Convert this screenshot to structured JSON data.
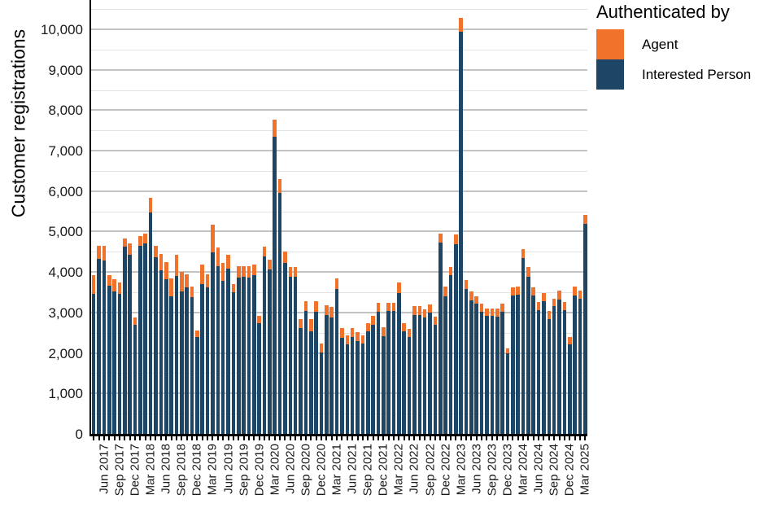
{
  "y_axis": {
    "title": "Customer registrations",
    "tick_values": [
      0,
      1000,
      2000,
      3000,
      4000,
      5000,
      6000,
      7000,
      8000,
      9000,
      10000
    ],
    "tick_labels": [
      "0",
      "1,000",
      "2,000",
      "3,000",
      "4,000",
      "5,000",
      "6,000",
      "7,000",
      "8,000",
      "9,000",
      "10,000"
    ]
  },
  "legend": {
    "title": "Authenticated by",
    "items": [
      {
        "label": "Agent",
        "color": "#F1732B"
      },
      {
        "label": "Interested Person",
        "color": "#1C4566"
      }
    ]
  },
  "chart_data": {
    "type": "bar",
    "stacked": true,
    "title": "",
    "xlabel": "",
    "ylabel": "Customer registrations",
    "ylim": [
      0,
      10724
    ],
    "grid": "horizontal, major every 1000 (gray), minor every 500 (light gray)",
    "legend_position": "top-right",
    "x": [
      "Apr 2017",
      "May 2017",
      "Jun 2017",
      "Jul 2017",
      "Aug 2017",
      "Sep 2017",
      "Oct 2017",
      "Nov 2017",
      "Dec 2017",
      "Jan 2018",
      "Feb 2018",
      "Mar 2018",
      "Apr 2018",
      "May 2018",
      "Jun 2018",
      "Jul 2018",
      "Aug 2018",
      "Sep 2018",
      "Oct 2018",
      "Nov 2018",
      "Dec 2018",
      "Jan 2019",
      "Feb 2019",
      "Mar 2019",
      "Apr 2019",
      "May 2019",
      "Jun 2019",
      "Jul 2019",
      "Aug 2019",
      "Sep 2019",
      "Oct 2019",
      "Nov 2019",
      "Dec 2019",
      "Jan 2020",
      "Feb 2020",
      "Mar 2020",
      "Apr 2020",
      "May 2020",
      "Jun 2020",
      "Jul 2020",
      "Aug 2020",
      "Sep 2020",
      "Oct 2020",
      "Nov 2020",
      "Dec 2020",
      "Jan 2021",
      "Feb 2021",
      "Mar 2021",
      "Apr 2021",
      "May 2021",
      "Jun 2021",
      "Jul 2021",
      "Aug 2021",
      "Sep 2021",
      "Oct 2021",
      "Nov 2021",
      "Dec 2021",
      "Jan 2022",
      "Feb 2022",
      "Mar 2022",
      "Apr 2022",
      "May 2022",
      "Jun 2022",
      "Jul 2022",
      "Aug 2022",
      "Sep 2022",
      "Oct 2022",
      "Nov 2022",
      "Dec 2022",
      "Jan 2023",
      "Feb 2023",
      "Mar 2023",
      "Apr 2023",
      "May 2023",
      "Jun 2023",
      "Jul 2023",
      "Aug 2023",
      "Sep 2023",
      "Oct 2023",
      "Nov 2023",
      "Dec 2023",
      "Jan 2024",
      "Feb 2024",
      "Mar 2024",
      "Apr 2024",
      "May 2024",
      "Jun 2024",
      "Jul 2024",
      "Aug 2024",
      "Sep 2024",
      "Oct 2024",
      "Nov 2024",
      "Dec 2024",
      "Jan 2025",
      "Feb 2025",
      "Mar 2025"
    ],
    "x_tick_labels": [
      "Jun 2017",
      "Sep 2017",
      "Dec 2017",
      "Mar 2018",
      "Jun 2018",
      "Sep 2018",
      "Dec 2018",
      "Mar 2019",
      "Jun 2019",
      "Sep 2019",
      "Dec 2019",
      "Mar 2020",
      "Jun 2020",
      "Sep 2020",
      "Dec 2020",
      "Mar 2021",
      "Jun 2021",
      "Sep 2021",
      "Dec 2021",
      "Mar 2022",
      "Jun 2022",
      "Sep 2022",
      "Dec 2022",
      "Mar 2023",
      "Jun 2023",
      "Sep 2023",
      "Dec 2023",
      "Mar 2024",
      "Jun 2024",
      "Sep 2024",
      "Dec 2024",
      "Mar 2025"
    ],
    "series": [
      {
        "name": "Interested Person",
        "color": "#1C4566",
        "values": [
          3460,
          4330,
          4280,
          3660,
          3520,
          3470,
          4620,
          4430,
          2690,
          4640,
          4700,
          5480,
          4360,
          4050,
          3820,
          3410,
          3900,
          3520,
          3620,
          3380,
          2390,
          3700,
          3620,
          4480,
          4140,
          3780,
          4080,
          3500,
          3870,
          3880,
          3870,
          3920,
          2730,
          4390,
          4060,
          7350,
          5950,
          4220,
          3880,
          3880,
          2610,
          3040,
          2540,
          3010,
          2010,
          2940,
          2880,
          3580,
          2370,
          2210,
          2400,
          2300,
          2230,
          2540,
          2700,
          3020,
          2420,
          3030,
          3030,
          3480,
          2540,
          2400,
          2930,
          2940,
          2880,
          3000,
          2700,
          4730,
          3410,
          3920,
          4690,
          9930,
          3580,
          3310,
          3210,
          3020,
          2910,
          2910,
          2900,
          3010,
          1990,
          3430,
          3440,
          4350,
          3880,
          3430,
          3060,
          3280,
          2830,
          3150,
          3330,
          3060,
          2210,
          3430,
          3350,
          5190
        ]
      },
      {
        "name": "Agent",
        "color": "#F1732B",
        "values": [
          460,
          310,
          370,
          270,
          300,
          270,
          200,
          270,
          180,
          240,
          240,
          350,
          290,
          400,
          430,
          440,
          520,
          480,
          330,
          270,
          160,
          490,
          330,
          690,
          460,
          440,
          340,
          200,
          270,
          260,
          270,
          260,
          180,
          230,
          240,
          410,
          340,
          280,
          240,
          240,
          230,
          250,
          300,
          270,
          230,
          240,
          250,
          270,
          240,
          230,
          210,
          210,
          210,
          200,
          210,
          210,
          210,
          210,
          210,
          260,
          200,
          200,
          220,
          210,
          200,
          200,
          200,
          230,
          240,
          210,
          230,
          360,
          220,
          210,
          190,
          190,
          180,
          180,
          190,
          200,
          120,
          190,
          210,
          220,
          240,
          200,
          200,
          200,
          210,
          200,
          220,
          200,
          180,
          210,
          200,
          220
        ]
      }
    ]
  }
}
